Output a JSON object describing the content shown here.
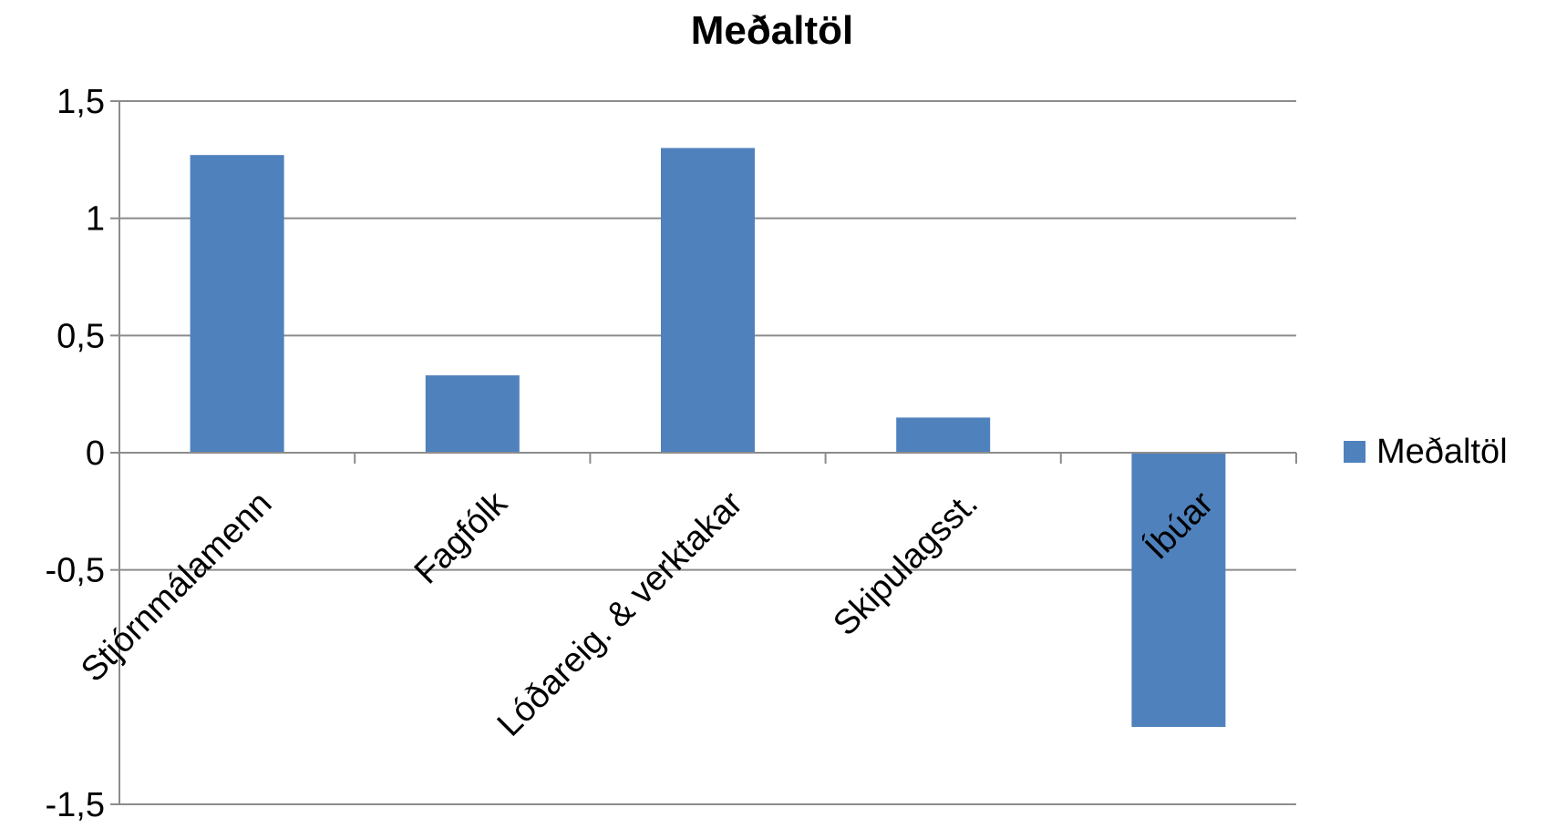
{
  "chart_data": {
    "type": "bar",
    "title": "Meðaltöl",
    "xlabel": "",
    "ylabel": "",
    "categories": [
      "Stjórnmálamenn",
      "Fagfólk",
      "Lóðareig. & verktakar",
      "Skipulagsst.",
      "Íbúar"
    ],
    "series": [
      {
        "name": "Meðaltöl",
        "values": [
          1.27,
          0.33,
          1.3,
          0.15,
          -1.17
        ]
      }
    ],
    "ylim": [
      -1.5,
      1.5
    ],
    "yticks": [
      1.5,
      1,
      0.5,
      0,
      -0.5,
      -1.5
    ],
    "ytick_labels": [
      "1,5",
      "1",
      "0,5",
      "0",
      "-0,5",
      "-1,5"
    ],
    "grid": true,
    "legend_position": "right",
    "colors": {
      "bar": "#4F81BD",
      "grid": "#8C8C8C",
      "axis": "#8C8C8C",
      "text": "#000000"
    }
  }
}
